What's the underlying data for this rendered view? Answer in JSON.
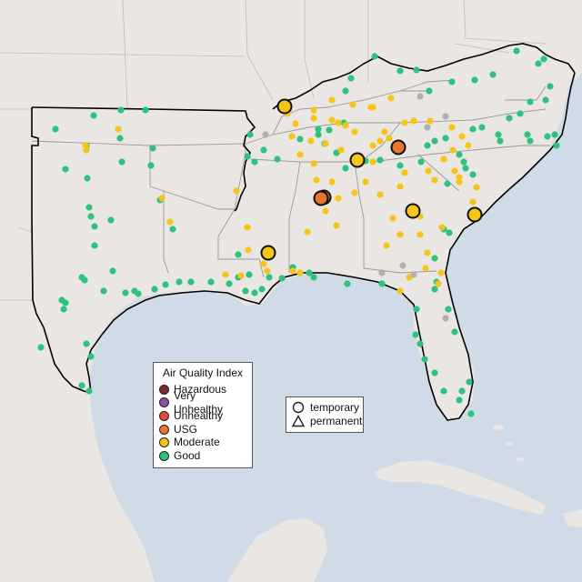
{
  "map": {
    "basemap": "southeastern-united-states",
    "colors": {
      "water": "#cfdbe6",
      "land": "#e9e6e3",
      "boundary": "#000000",
      "outside_boundary": "#bdbdbd"
    }
  },
  "aqi_legend": {
    "title": "Air Quality Index",
    "items": [
      {
        "label": "Hazardous",
        "color": "#7e2b2b"
      },
      {
        "label": "Very Unhealthy",
        "color": "#8e4fa8"
      },
      {
        "label": "Unhealthy",
        "color": "#e84a3a"
      },
      {
        "label": "USG",
        "color": "#e5762a"
      },
      {
        "label": "Moderate",
        "color": "#f5c518"
      },
      {
        "label": "Good",
        "color": "#2ec27e"
      }
    ]
  },
  "monitor_type_legend": {
    "items": [
      {
        "label": "temporary",
        "icon": "circle-outline-icon"
      },
      {
        "label": "permanent",
        "icon": "triangle-outline-icon"
      }
    ]
  },
  "colors": {
    "good": "#2ec27e",
    "moderate": "#f5c518",
    "usg": "#e5762a",
    "no_data": "#b0b0b0"
  }
}
